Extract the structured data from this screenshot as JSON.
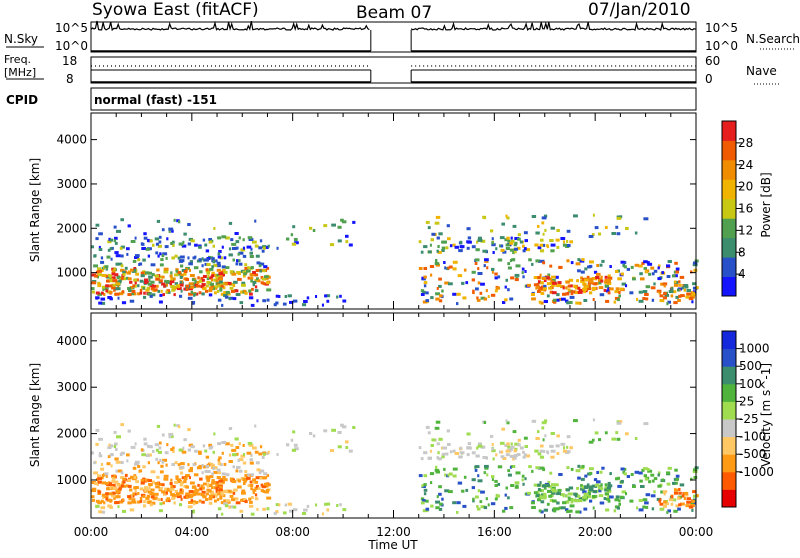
{
  "header": {
    "radar": "Syowa East (fitACF)",
    "beam": "Beam 07",
    "date": "07/Jan/2010"
  },
  "params": {
    "nsky_label": "N.Sky",
    "nsky_ticks": [
      "10^5",
      "10^0"
    ],
    "nsearch_label": "N.Search",
    "freq_label": "Freq.",
    "freq_unit": "[MHz]",
    "freq_ticks": [
      "18",
      "8"
    ],
    "nave_label": "Nave",
    "nave_ticks": [
      "60",
      "0"
    ],
    "cpid_label": "CPID",
    "cpid_value": "normal (fast) -151"
  },
  "colors": {
    "power_scale": [
      "#1414ff",
      "#2850c8",
      "#3c8c6e",
      "#50a050",
      "#c8c814",
      "#f0b400",
      "#f08c00",
      "#f05a00",
      "#e61e1e"
    ],
    "velocity_scale": [
      "#e60000",
      "#ff5a00",
      "#ff9a14",
      "#ffc864",
      "#c8c8c8",
      "#a0dc50",
      "#50b43c",
      "#3c8c6e",
      "#2850c8",
      "#1428dc"
    ]
  },
  "chart_data": [
    {
      "type": "heatmap",
      "name": "Power",
      "xlabel": "",
      "ylabel": "Slant Range [km]",
      "x_ticks": [
        "00:00",
        "04:00",
        "08:00",
        "12:00",
        "16:00",
        "20:00",
        "00:00"
      ],
      "x_range_hours": [
        0,
        24
      ],
      "y_ticks": [
        1000,
        2000,
        3000,
        4000
      ],
      "y_range_km": [
        180,
        4600
      ],
      "colorbar_label": "Power [dB]",
      "colorbar_ticks": [
        4,
        8,
        12,
        16,
        20,
        24,
        28
      ],
      "colorbar_range": [
        0,
        32
      ],
      "data_gaps_hours": [
        [
          11.1,
          12.7
        ]
      ]
    },
    {
      "type": "heatmap",
      "name": "Velocity",
      "xlabel": "Time UT",
      "ylabel": "Slant Range [km]",
      "x_ticks": [
        "00:00",
        "04:00",
        "08:00",
        "12:00",
        "16:00",
        "20:00",
        "00:00"
      ],
      "x_range_hours": [
        0,
        24
      ],
      "y_ticks": [
        1000,
        2000,
        3000,
        4000
      ],
      "y_range_km": [
        180,
        4600
      ],
      "colorbar_label": "Velocity [m s^-1]",
      "colorbar_ticks": [
        "1000",
        "500",
        "100",
        "25",
        "-25",
        "-100",
        "-500",
        "-1000"
      ],
      "data_gaps_hours": [
        [
          11.1,
          12.7
        ]
      ]
    }
  ]
}
